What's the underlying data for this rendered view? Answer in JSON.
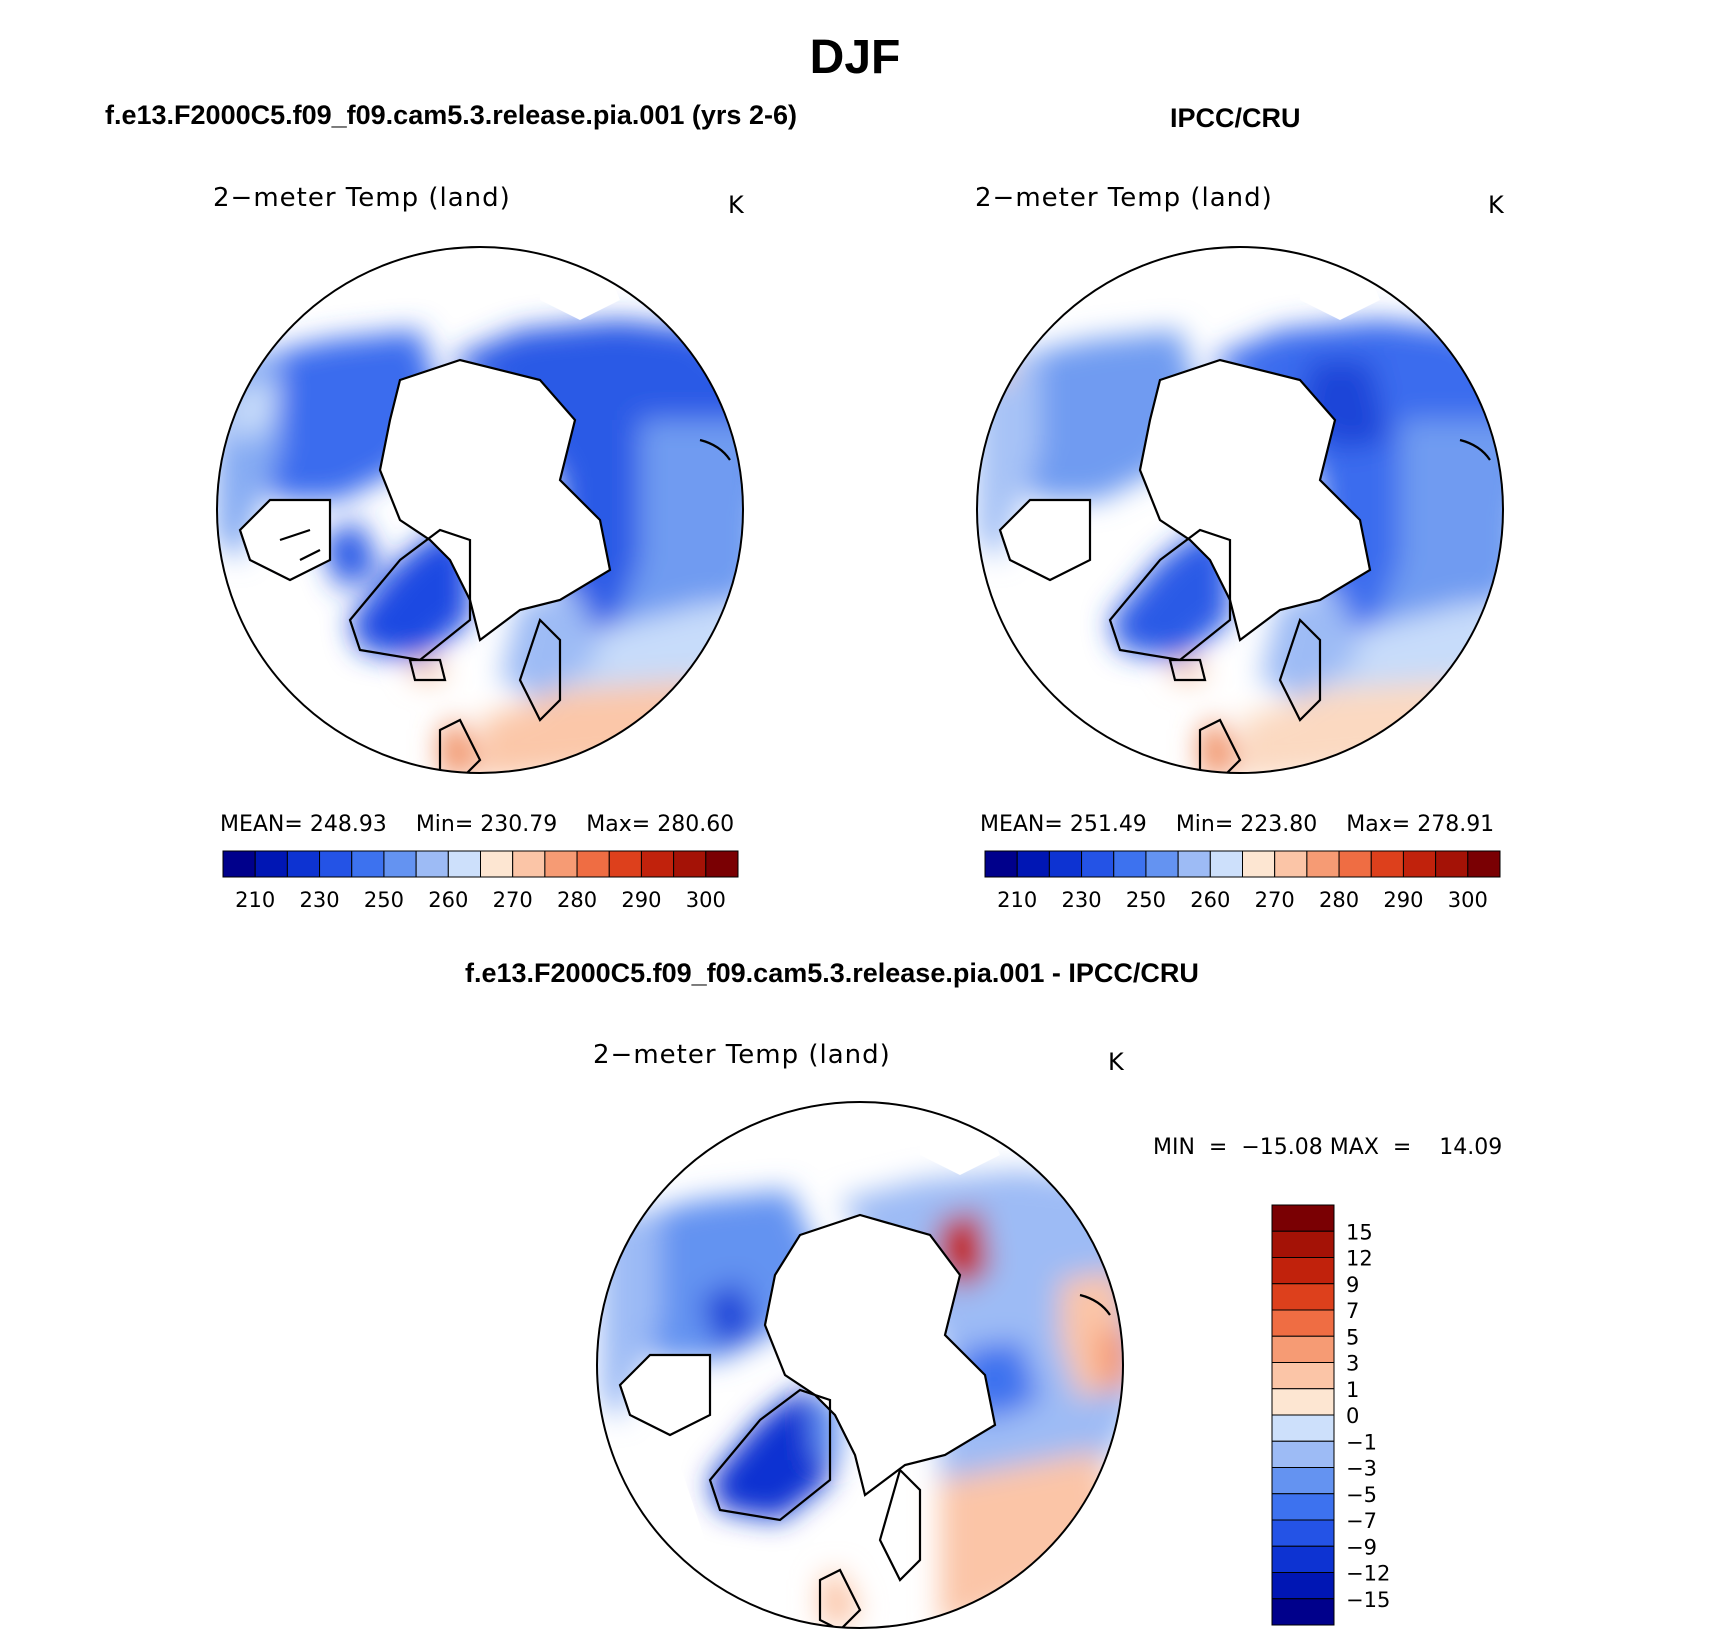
{
  "figure": {
    "title": "DJF"
  },
  "palettes": {
    "abs": [
      "#00008b",
      "#0016b4",
      "#0d33d2",
      "#2453e6",
      "#3d72ef",
      "#6493f1",
      "#9dbbf5",
      "#cde0fb",
      "#fde6d2",
      "#fbc5a7",
      "#f69b74",
      "#ef6d43",
      "#dd401c",
      "#c1220c",
      "#a41206",
      "#7a0003"
    ],
    "diff": [
      "#7a0003",
      "#a41206",
      "#c1220c",
      "#dd401c",
      "#ef6d43",
      "#f69b74",
      "#fbc5a7",
      "#fde6d2",
      "#cde0fb",
      "#9dbbf5",
      "#6493f1",
      "#3d72ef",
      "#2453e6",
      "#0d33d2",
      "#0016b4",
      "#00008b"
    ]
  },
  "chart_data": [
    {
      "type": "heatmap",
      "projection": "polar-stereographic",
      "case_title": "f.e13.F2000C5.f09_f09.cam5.3.release.pia.001 (yrs 2-6)",
      "variable_title": "2−meter Temp (land)",
      "units": "K",
      "stats": {
        "mean_label": "MEAN=",
        "mean": "248.93",
        "min_label": "Min=",
        "min": "230.79",
        "max_label": "Max=",
        "max": "280.60"
      },
      "colorbar": {
        "orientation": "horizontal",
        "tick_labels": [
          "210",
          "230",
          "250",
          "260",
          "270",
          "280",
          "290",
          "300"
        ],
        "num_bins": 16
      }
    },
    {
      "type": "heatmap",
      "projection": "polar-stereographic",
      "case_title": "IPCC/CRU",
      "variable_title": "2−meter Temp (land)",
      "units": "K",
      "stats": {
        "mean_label": "MEAN=",
        "mean": "251.49",
        "min_label": "Min=",
        "min": "223.80",
        "max_label": "Max=",
        "max": "278.91"
      },
      "colorbar": {
        "orientation": "horizontal",
        "tick_labels": [
          "210",
          "230",
          "250",
          "260",
          "270",
          "280",
          "290",
          "300"
        ],
        "num_bins": 16
      }
    },
    {
      "type": "heatmap",
      "projection": "polar-stereographic",
      "case_title": "f.e13.F2000C5.f09_f09.cam5.3.release.pia.001 - IPCC/CRU",
      "variable_title": "2−meter Temp (land)",
      "units": "K",
      "stats": {
        "min_label": "MIN",
        "min": "−15.08",
        "max_label": "MAX",
        "max": "14.09"
      },
      "colorbar": {
        "orientation": "vertical",
        "tick_labels": [
          "15",
          "12",
          "9",
          "7",
          "5",
          "3",
          "1",
          "0",
          "−1",
          "−3",
          "−5",
          "−7",
          "−9",
          "−12",
          "−15"
        ],
        "num_bins": 16
      }
    }
  ]
}
